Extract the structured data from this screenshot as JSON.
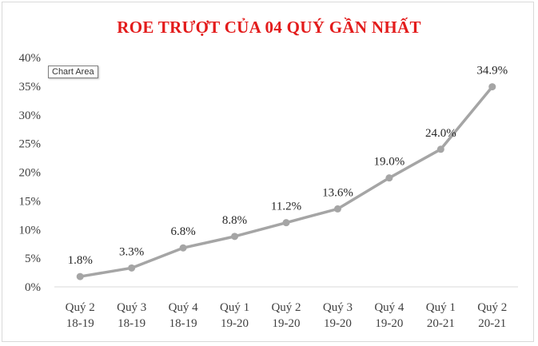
{
  "tooltip": "Chart Area",
  "chart_data": {
    "type": "line",
    "title": "ROE TRƯỢT CỦA 04 QUÝ GẦN NHẤT",
    "categories": [
      [
        "Quý 2",
        "18-19"
      ],
      [
        "Quý 3",
        "18-19"
      ],
      [
        "Quý 4",
        "18-19"
      ],
      [
        "Quý 1",
        "19-20"
      ],
      [
        "Quý 2",
        "19-20"
      ],
      [
        "Quý 3",
        "19-20"
      ],
      [
        "Quý 4",
        "19-20"
      ],
      [
        "Quý 1",
        "20-21"
      ],
      [
        "Quý 2",
        "20-21"
      ]
    ],
    "values": [
      1.8,
      3.3,
      6.8,
      8.8,
      11.2,
      13.6,
      19.0,
      24.0,
      34.9
    ],
    "data_labels": [
      "1.8%",
      "3.3%",
      "6.8%",
      "8.8%",
      "11.2%",
      "13.6%",
      "19.0%",
      "24.0%",
      "34.9%"
    ],
    "y_ticks": [
      "0%",
      "5%",
      "10%",
      "15%",
      "20%",
      "25%",
      "30%",
      "35%",
      "40%"
    ],
    "ylim": [
      0,
      40
    ],
    "grid": false,
    "legend": "none",
    "colors": {
      "line": "#a5a5a5",
      "title": "#e31b1b",
      "axis": "#d9d9d9"
    }
  }
}
